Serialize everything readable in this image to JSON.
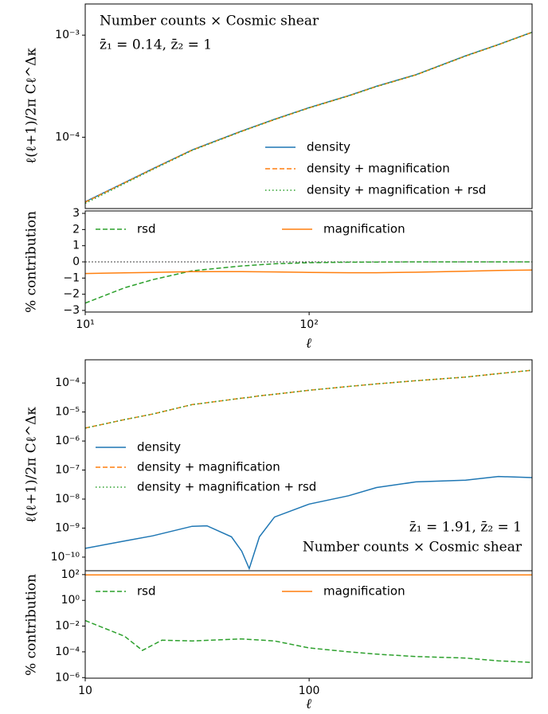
{
  "chart_data": [
    {
      "type": "line",
      "log_x": true,
      "log_y": true,
      "xlim": [
        10,
        990
      ],
      "ylim": [
        2e-05,
        0.00202
      ],
      "yticks": [
        {
          "value": 0.0001,
          "label": "10⁻⁴"
        },
        {
          "value": 0.001,
          "label": "10⁻³"
        }
      ],
      "ylabel": "ℓ(ℓ+1)/2π Cℓ^Δκ",
      "annotations": [
        "Number counts × Cosmic shear",
        "z̄₁ = 0.14,  z̄₂ = 1"
      ],
      "legend": "lower right",
      "x": [
        10,
        15,
        20,
        30,
        50,
        70,
        100,
        150,
        200,
        300,
        500,
        700,
        990
      ],
      "series": [
        {
          "name": "density",
          "color": "#1f77b4",
          "linestyle": "solid",
          "values": [
            2.33e-05,
            3.6e-05,
            4.9e-05,
            7.5e-05,
            0.000115,
            0.00015,
            0.000195,
            0.000255,
            0.000316,
            0.00041,
            0.000627,
            0.00081,
            0.00107
          ]
        },
        {
          "name": "density + magnification",
          "color": "#ff7f0e",
          "linestyle": "dashed",
          "values": [
            2.31e-05,
            3.58e-05,
            4.87e-05,
            7.46e-05,
            0.0001144,
            0.000149,
            0.000194,
            0.000254,
            0.000314,
            0.000408,
            0.000624,
            0.000806,
            0.001065
          ]
        },
        {
          "name": "density + magnification + rsd",
          "color": "#2ca02c",
          "linestyle": "dotted",
          "values": [
            2.25e-05,
            3.52e-05,
            4.82e-05,
            7.42e-05,
            0.0001141,
            0.0001488,
            0.0001939,
            0.000254,
            0.000314,
            0.000408,
            0.000624,
            0.000806,
            0.001065
          ]
        }
      ]
    },
    {
      "type": "line",
      "log_x": true,
      "log_y": false,
      "xlim": [
        10,
        990
      ],
      "ylim": [
        -3.1,
        3.15
      ],
      "xticks": [
        {
          "value": 10,
          "label": "10¹"
        },
        {
          "value": 100,
          "label": "10²"
        }
      ],
      "yticks": [
        {
          "value": -3,
          "label": "−3"
        },
        {
          "value": -2,
          "label": "−2"
        },
        {
          "value": -1,
          "label": "−1"
        },
        0,
        1,
        2,
        3
      ],
      "xlabel": "ℓ",
      "ylabel": "% contribution",
      "reference_line": 0,
      "legend": "upper left",
      "x": [
        10,
        15,
        20,
        30,
        50,
        70,
        100,
        150,
        200,
        300,
        500,
        700,
        990
      ],
      "series": [
        {
          "name": "rsd",
          "color": "#2ca02c",
          "linestyle": "dashed",
          "values": [
            -2.55,
            -1.6,
            -1.1,
            -0.55,
            -0.25,
            -0.12,
            -0.05,
            -0.02,
            -0.01,
            0,
            0,
            0,
            0
          ]
        },
        {
          "name": "magnification",
          "color": "#ff7f0e",
          "linestyle": "solid",
          "values": [
            -0.72,
            -0.68,
            -0.65,
            -0.6,
            -0.6,
            -0.62,
            -0.65,
            -0.67,
            -0.67,
            -0.64,
            -0.58,
            -0.53,
            -0.5
          ]
        }
      ]
    },
    {
      "type": "line",
      "log_x": true,
      "log_y": true,
      "xlim": [
        10,
        990
      ],
      "ylim": [
        3.4e-11,
        0.00063
      ],
      "yticks": [
        {
          "value": 1e-10,
          "label": "10⁻¹⁰"
        },
        {
          "value": 1e-09,
          "label": "10⁻⁹"
        },
        {
          "value": 1e-08,
          "label": "10⁻⁸"
        },
        {
          "value": 1e-07,
          "label": "10⁻⁷"
        },
        {
          "value": 1e-06,
          "label": "10⁻⁶"
        },
        {
          "value": 1e-05,
          "label": "10⁻⁵"
        },
        {
          "value": 0.0001,
          "label": "10⁻⁴"
        }
      ],
      "ylabel": "ℓ(ℓ+1)/2π Cℓ^Δκ",
      "annotations": [
        "z̄₁ = 1.91,  z̄₂ = 1",
        "Number counts × Cosmic shear"
      ],
      "legend": "center left",
      "x": [
        10,
        15,
        20,
        30,
        35,
        45,
        50,
        54,
        60,
        70,
        100,
        150,
        200,
        300,
        500,
        700,
        990
      ],
      "series": [
        {
          "name": "density",
          "color": "#1f77b4",
          "linestyle": "solid",
          "values": [
            2e-10,
            3.6e-10,
            5.4e-10,
            1.15e-09,
            1.2e-09,
            5e-10,
            1.6e-10,
            4e-11,
            5e-10,
            2.4e-09,
            6.7e-09,
            1.3e-08,
            2.5e-08,
            3.9e-08,
            4.5e-08,
            6e-08,
            5.5e-08
          ]
        },
        {
          "name": "density + magnification",
          "color": "#ff7f0e",
          "linestyle": "dashed",
          "values": [
            2.8e-06,
            5.5e-06,
            8.5e-06,
            1.8e-05,
            2.1e-05,
            2.7e-05,
            3e-05,
            3.2e-05,
            3.6e-05,
            4.1e-05,
            5.6e-05,
            7.6e-05,
            9.3e-05,
            0.00012,
            0.00016,
            0.00021,
            0.000276
          ]
        },
        {
          "name": "density + magnification + rsd",
          "color": "#2ca02c",
          "linestyle": "dotted",
          "values": [
            2.8e-06,
            5.5e-06,
            8.5e-06,
            1.8e-05,
            2.1e-05,
            2.7e-05,
            3e-05,
            3.2e-05,
            3.6e-05,
            4.1e-05,
            5.6e-05,
            7.6e-05,
            9.3e-05,
            0.00012,
            0.00016,
            0.00021,
            0.000276
          ]
        }
      ]
    },
    {
      "type": "line",
      "log_x": true,
      "log_y": true,
      "xlim": [
        10,
        990
      ],
      "ylim": [
        9e-07,
        200
      ],
      "xticks": [
        10,
        100
      ],
      "yticks": [
        {
          "value": 1e-06,
          "label": "10⁻⁶"
        },
        {
          "value": 0.0001,
          "label": "10⁻⁴"
        },
        {
          "value": 0.01,
          "label": "10⁻²"
        },
        {
          "value": 1,
          "label": "10⁰"
        },
        {
          "value": 100,
          "label": "10²"
        }
      ],
      "xlabel": "ℓ",
      "ylabel": "% contribution",
      "legend": "upper left",
      "x": [
        10,
        15,
        18,
        22,
        30,
        50,
        70,
        100,
        150,
        200,
        300,
        500,
        700,
        990
      ],
      "series": [
        {
          "name": "rsd",
          "color": "#2ca02c",
          "linestyle": "dashed",
          "values": [
            0.027,
            0.0016,
            0.00013,
            0.0008,
            0.0007,
            0.001,
            0.0007,
            0.0002,
            0.0001,
            6.6e-05,
            4.3e-05,
            3.3e-05,
            2e-05,
            1.5e-05
          ]
        },
        {
          "name": "magnification",
          "color": "#ff7f0e",
          "linestyle": "solid",
          "values": [
            95,
            95,
            95,
            95,
            95,
            95,
            95,
            95,
            95,
            95,
            95,
            95,
            95,
            95
          ]
        }
      ]
    }
  ]
}
